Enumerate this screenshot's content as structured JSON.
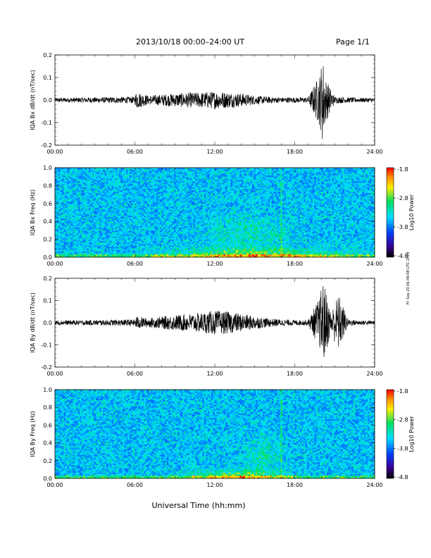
{
  "header": {
    "date_range": "2013/10/18  00:00–24:00 UT",
    "page": "Page 1/1"
  },
  "side_stamp": "Fri Sep 20 06:49:08 UTC 2019",
  "x_axis": {
    "label": "Universal Time (hh:mm)",
    "ticks": [
      "00:00",
      "06:00",
      "12:00",
      "18:00",
      "24:00"
    ],
    "range_hours": [
      0,
      24
    ]
  },
  "colorbar": {
    "label": "Log10 Power",
    "ticks": [
      "-1.8",
      "-2.8",
      "-3.8",
      "-4.8"
    ],
    "range": [
      -4.8,
      -1.8
    ]
  },
  "chart_data": [
    {
      "type": "line",
      "ylabel": "IQA Bx dB/dt (nT/sec)",
      "ylim": [
        -0.2,
        0.2
      ],
      "yticks": [
        "0.2",
        "0.1",
        "0.0",
        "-0.1",
        "-0.2"
      ],
      "x": [
        0,
        3,
        6,
        6.1,
        7,
        9,
        11,
        12,
        13,
        14,
        15,
        16,
        17,
        18,
        19,
        19.9,
        20.1,
        20.3,
        21,
        22,
        23,
        24
      ],
      "y_envelope": [
        0.01,
        0.012,
        0.015,
        0.04,
        0.02,
        0.03,
        0.035,
        0.04,
        0.035,
        0.03,
        0.02,
        0.015,
        0.012,
        0.012,
        0.012,
        0.12,
        0.2,
        0.1,
        0.015,
        0.012,
        0.01,
        0.01
      ]
    },
    {
      "type": "heatmap",
      "ylabel": "IQA Bx Freq (Hz)",
      "ylim": [
        0.0,
        1.0
      ],
      "yticks": [
        "1.0",
        "0.8",
        "0.6",
        "0.4",
        "0.2",
        "0.0"
      ],
      "colorbar_range": [
        -4.8,
        -1.8
      ],
      "features": [
        {
          "note": "enhanced low-frequency power below 0.1 Hz",
          "hours": [
            6,
            24
          ]
        },
        {
          "note": "broadband enhancement 0.1-0.4 Hz",
          "hours": [
            11,
            18
          ]
        },
        {
          "note": "vertical broadband stripe",
          "hour": 17
        }
      ]
    },
    {
      "type": "line",
      "ylabel": "IQA By dB/dt (nT/sec)",
      "ylim": [
        -0.2,
        0.2
      ],
      "yticks": [
        "0.2",
        "0.1",
        "0.0",
        "-0.1",
        "-0.2"
      ],
      "x": [
        0,
        3,
        6,
        6.1,
        7,
        9,
        11,
        12,
        13,
        14,
        15,
        16,
        17,
        18,
        19,
        19.9,
        20.1,
        20.4,
        20.7,
        21.3,
        22,
        23,
        24
      ],
      "y_envelope": [
        0.01,
        0.012,
        0.015,
        0.03,
        0.02,
        0.035,
        0.045,
        0.055,
        0.05,
        0.04,
        0.03,
        0.02,
        0.015,
        0.012,
        0.012,
        0.12,
        0.2,
        0.13,
        0.05,
        0.13,
        0.015,
        0.01,
        0.01
      ]
    },
    {
      "type": "heatmap",
      "ylabel": "IQA By Freq (Hz)",
      "ylim": [
        0.0,
        1.0
      ],
      "yticks": [
        "1.0",
        "0.8",
        "0.6",
        "0.4",
        "0.2",
        "0.0"
      ],
      "colorbar_range": [
        -4.8,
        -1.8
      ],
      "features": [
        {
          "note": "strong low-frequency power below 0.15 Hz",
          "hours": [
            9,
            18
          ]
        },
        {
          "note": "discrete enhancements near 0.2-0.3 Hz",
          "hours": [
            14.5,
            16.5
          ]
        },
        {
          "note": "vertical broadband stripe",
          "hour": 17
        }
      ]
    }
  ]
}
